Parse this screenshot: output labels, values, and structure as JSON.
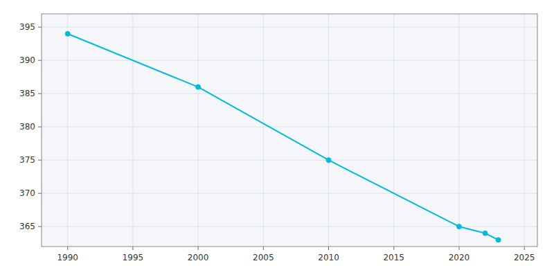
{
  "chart_data": {
    "type": "line",
    "x": [
      1990,
      2000,
      2010,
      2020,
      2022,
      2023
    ],
    "values": [
      394,
      386,
      375,
      365,
      364,
      363
    ],
    "color": "#00bcd4",
    "marker": "circle",
    "xlim": [
      1988,
      2026
    ],
    "ylim": [
      362,
      397
    ],
    "xticks": [
      1990,
      1995,
      2000,
      2005,
      2010,
      2015,
      2020,
      2025
    ],
    "yticks": [
      365,
      370,
      375,
      380,
      385,
      390,
      395
    ],
    "grid": true
  }
}
